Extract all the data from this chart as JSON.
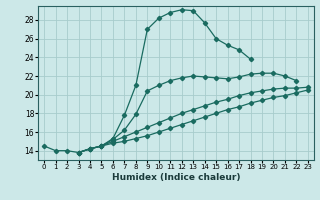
{
  "xlabel": "Humidex (Indice chaleur)",
  "bg_color": "#cce8e8",
  "line_color": "#1a6b60",
  "grid_color": "#a8cccc",
  "xlim": [
    -0.5,
    23.5
  ],
  "ylim": [
    13.0,
    29.5
  ],
  "xticks": [
    0,
    1,
    2,
    3,
    4,
    5,
    6,
    7,
    8,
    9,
    10,
    11,
    12,
    13,
    14,
    15,
    16,
    17,
    18,
    19,
    20,
    21,
    22,
    23
  ],
  "yticks": [
    14,
    16,
    18,
    20,
    22,
    24,
    26,
    28
  ],
  "curves": [
    {
      "x": [
        0,
        1,
        2,
        3,
        4,
        5,
        6,
        7,
        8,
        9,
        10,
        11,
        12,
        13,
        14,
        15,
        16,
        17,
        18
      ],
      "y": [
        14.5,
        14.0,
        14.0,
        13.8,
        14.2,
        14.5,
        15.3,
        17.8,
        21.0,
        27.0,
        28.2,
        28.8,
        29.1,
        29.0,
        27.7,
        26.0,
        25.3,
        24.8,
        23.8
      ]
    },
    {
      "x": [
        3,
        4,
        5,
        6,
        7,
        8,
        9,
        10,
        11,
        12,
        13,
        14,
        15,
        16,
        17,
        18,
        19,
        20,
        21,
        22
      ],
      "y": [
        13.8,
        14.2,
        14.5,
        15.2,
        16.2,
        17.9,
        20.4,
        21.0,
        21.5,
        21.8,
        22.0,
        21.9,
        21.8,
        21.7,
        21.9,
        22.2,
        22.3,
        22.3,
        22.0,
        21.5
      ]
    },
    {
      "x": [
        3,
        4,
        5,
        6,
        7,
        8,
        9,
        10,
        11,
        12,
        13,
        14,
        15,
        16,
        17,
        18,
        19,
        20,
        21,
        22,
        23
      ],
      "y": [
        13.8,
        14.2,
        14.5,
        15.0,
        15.5,
        16.0,
        16.5,
        17.0,
        17.5,
        18.0,
        18.4,
        18.8,
        19.2,
        19.5,
        19.9,
        20.2,
        20.4,
        20.6,
        20.7,
        20.7,
        20.8
      ]
    },
    {
      "x": [
        3,
        4,
        5,
        6,
        7,
        8,
        9,
        10,
        11,
        12,
        13,
        14,
        15,
        16,
        17,
        18,
        19,
        20,
        21,
        22,
        23
      ],
      "y": [
        13.8,
        14.2,
        14.5,
        14.8,
        15.0,
        15.3,
        15.6,
        16.0,
        16.4,
        16.8,
        17.2,
        17.6,
        18.0,
        18.4,
        18.7,
        19.1,
        19.4,
        19.7,
        19.9,
        20.2,
        20.5
      ]
    }
  ]
}
